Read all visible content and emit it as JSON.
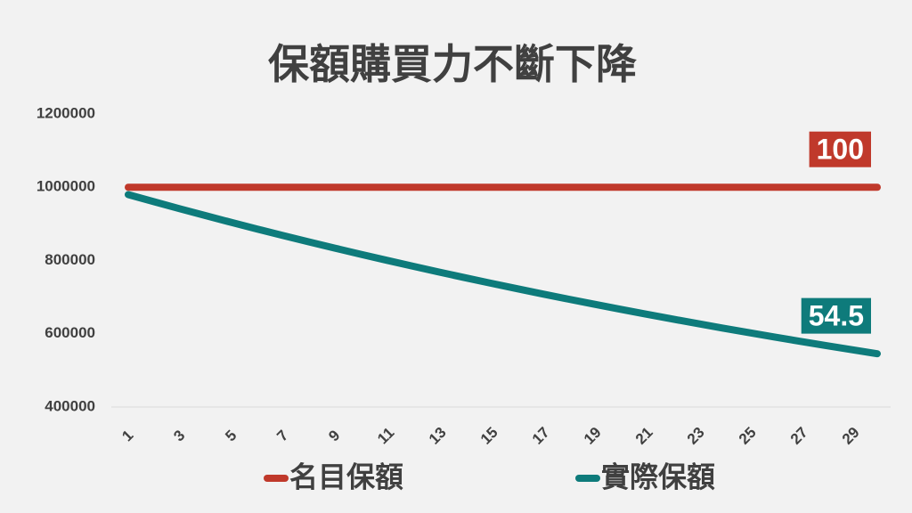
{
  "chart_data": {
    "type": "line",
    "title": "保額購買力不斷下降",
    "categories": [
      "1",
      null,
      "3",
      null,
      "5",
      null,
      "7",
      null,
      "9",
      null,
      "11",
      null,
      "13",
      null,
      "15",
      null,
      "17",
      null,
      "19",
      null,
      "21",
      null,
      "23",
      null,
      "25",
      null,
      "27",
      null,
      "29",
      null
    ],
    "series": [
      {
        "name": "名目保額",
        "color": "#c0392b",
        "values": [
          1000000,
          1000000,
          1000000,
          1000000,
          1000000,
          1000000,
          1000000,
          1000000,
          1000000,
          1000000,
          1000000,
          1000000,
          1000000,
          1000000,
          1000000,
          1000000,
          1000000,
          1000000,
          1000000,
          1000000,
          1000000,
          1000000,
          1000000,
          1000000,
          1000000,
          1000000,
          1000000,
          1000000,
          1000000,
          1000000
        ]
      },
      {
        "name": "實際保額",
        "color": "#0e7b7b",
        "values": [
          980000,
          960400,
          941192,
          922368,
          903921,
          885842,
          868126,
          850763,
          833748,
          817073,
          800731,
          784717,
          769022,
          753642,
          738569,
          723798,
          709322,
          695135,
          681233,
          667608,
          654256,
          641171,
          628347,
          615780,
          603465,
          591395,
          579568,
          567976,
          556617,
          545484
        ]
      }
    ],
    "annotations": [
      "100",
      "54.5"
    ],
    "ylim": [
      400000,
      1200000
    ],
    "yticks": [
      400000,
      600000,
      800000,
      1000000,
      1200000
    ],
    "grid": false,
    "legend": "bottom"
  }
}
